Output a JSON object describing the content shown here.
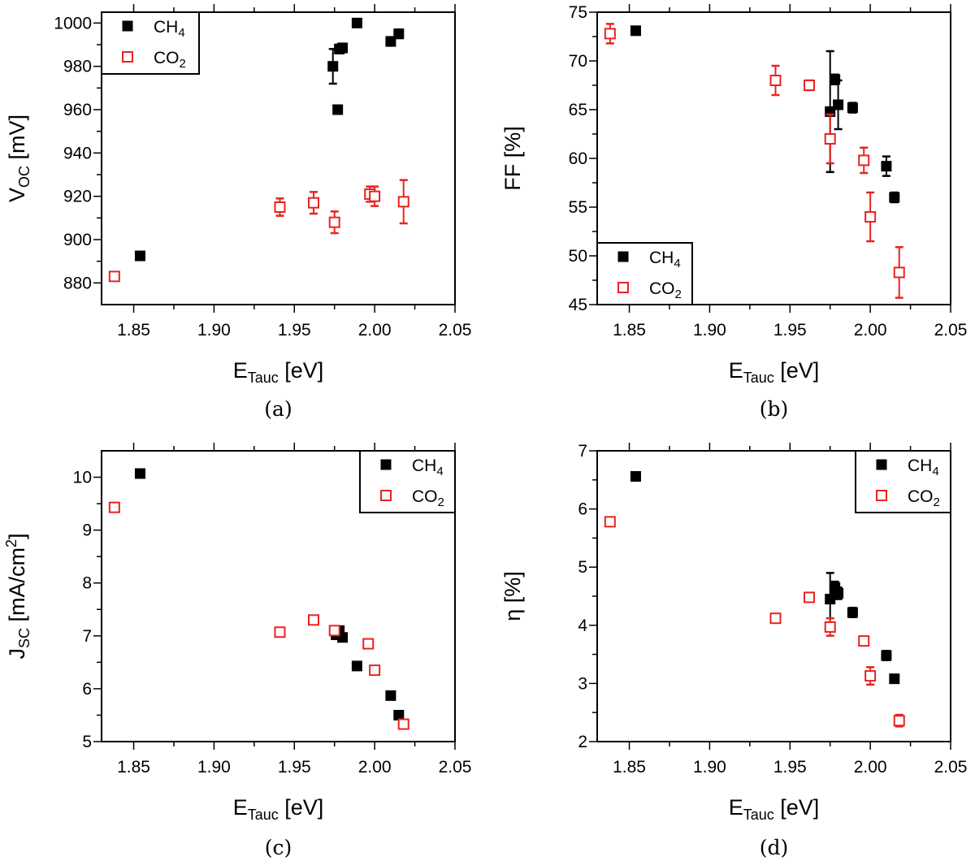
{
  "colors": {
    "ch4": "#000000",
    "co2": "#e8231f"
  },
  "x_title": {
    "main": "E",
    "sub": "Tauc",
    "unit": " [eV]"
  },
  "x_ticks": [
    "1.85",
    "1.90",
    "1.95",
    "2.00",
    "2.05"
  ],
  "legend_labels": [
    {
      "main": "CH",
      "sub": "4"
    },
    {
      "main": "CO",
      "sub": "2"
    }
  ],
  "chart_data": [
    {
      "type": "scatter",
      "caption": "(a)",
      "ylabel": {
        "main": "V",
        "sub": "OC",
        "unit": " [mV]"
      },
      "xlim": [
        1.83,
        2.05
      ],
      "ylim": [
        870,
        1005
      ],
      "y_ticks": [
        "880",
        "900",
        "920",
        "940",
        "960",
        "980",
        "1000"
      ],
      "legend_position": "top-left",
      "series": [
        {
          "name": "CH4",
          "marker": "filled-square",
          "x": [
            1.854,
            1.974,
            1.977,
            1.978,
            1.98,
            1.989,
            2.01,
            2.015
          ],
          "y": [
            892.5,
            980,
            960,
            988,
            988.5,
            1000,
            991.5,
            995
          ],
          "err": [
            1.5,
            8,
            1.5,
            2,
            2,
            1.5,
            2,
            2
          ]
        },
        {
          "name": "CO2",
          "marker": "open-square",
          "x": [
            1.838,
            1.941,
            1.962,
            1.975,
            1.997,
            2.0,
            2.018
          ],
          "y": [
            883,
            915,
            917,
            908,
            921,
            920,
            917.5
          ],
          "err": [
            2,
            4,
            5,
            5,
            3.5,
            4.5,
            10
          ]
        }
      ]
    },
    {
      "type": "scatter",
      "caption": "(b)",
      "ylabel": {
        "main": "FF [%]",
        "sub": "",
        "unit": ""
      },
      "xlim": [
        1.83,
        2.05
      ],
      "ylim": [
        45,
        75
      ],
      "y_ticks": [
        "45",
        "50",
        "55",
        "60",
        "65",
        "70",
        "75"
      ],
      "legend_position": "bottom-left",
      "series": [
        {
          "name": "CH4",
          "marker": "filled-square",
          "x": [
            1.854,
            1.975,
            1.978,
            1.98,
            1.989,
            2.01,
            2.015
          ],
          "y": [
            73.1,
            64.8,
            68.1,
            65.5,
            65.2,
            59.2,
            56.0
          ],
          "err": [
            0.4,
            6.2,
            0.5,
            2.5,
            0.5,
            1.0,
            0.5
          ]
        },
        {
          "name": "CO2",
          "marker": "open-square",
          "x": [
            1.838,
            1.941,
            1.962,
            1.975,
            1.996,
            2.0,
            2.018
          ],
          "y": [
            72.8,
            68.0,
            67.5,
            62.0,
            59.8,
            54.0,
            48.3
          ],
          "err": [
            1.0,
            1.5,
            0.5,
            2.5,
            1.3,
            2.5,
            2.6
          ]
        }
      ]
    },
    {
      "type": "scatter",
      "caption": "(c)",
      "ylabel": {
        "main": "J",
        "sub": "SC",
        "unit": " [mA/cm",
        "sup": "2",
        "end": "]"
      },
      "xlim": [
        1.83,
        2.05
      ],
      "ylim": [
        5,
        10.5
      ],
      "y_ticks": [
        "5",
        "6",
        "7",
        "8",
        "9",
        "10"
      ],
      "legend_position": "top-right",
      "series": [
        {
          "name": "CH4",
          "marker": "filled-square",
          "x": [
            1.854,
            1.976,
            1.978,
            1.98,
            1.989,
            2.01,
            2.015
          ],
          "y": [
            10.07,
            7.02,
            7.1,
            6.97,
            6.43,
            5.87,
            5.5
          ],
          "err": []
        },
        {
          "name": "CO2",
          "marker": "open-square",
          "x": [
            1.838,
            1.941,
            1.962,
            1.975,
            1.996,
            2.0,
            2.018
          ],
          "y": [
            9.43,
            7.07,
            7.3,
            7.1,
            6.85,
            6.35,
            5.33
          ],
          "err": []
        }
      ]
    },
    {
      "type": "scatter",
      "caption": "(d)",
      "ylabel": {
        "main": "η [%]",
        "sub": "",
        "unit": ""
      },
      "xlim": [
        1.83,
        2.05
      ],
      "ylim": [
        2,
        7
      ],
      "y_ticks": [
        "2",
        "3",
        "4",
        "5",
        "6",
        "7"
      ],
      "legend_position": "top-right",
      "series": [
        {
          "name": "CH4",
          "marker": "filled-square",
          "x": [
            1.854,
            1.975,
            1.978,
            1.98,
            1.989,
            2.01,
            2.015
          ],
          "y": [
            6.56,
            4.45,
            4.65,
            4.55,
            4.22,
            3.48,
            3.08
          ],
          "err": [
            0.05,
            0.45,
            0.1,
            0.1,
            0.08,
            0.08,
            0.05
          ]
        },
        {
          "name": "CO2",
          "marker": "open-square",
          "x": [
            1.838,
            1.941,
            1.962,
            1.975,
            1.996,
            2.0,
            2.018
          ],
          "y": [
            5.78,
            4.12,
            4.48,
            3.97,
            3.73,
            3.13,
            2.36
          ],
          "err": [
            0.05,
            0.06,
            0.06,
            0.15,
            0.06,
            0.15,
            0.1
          ]
        }
      ]
    }
  ]
}
